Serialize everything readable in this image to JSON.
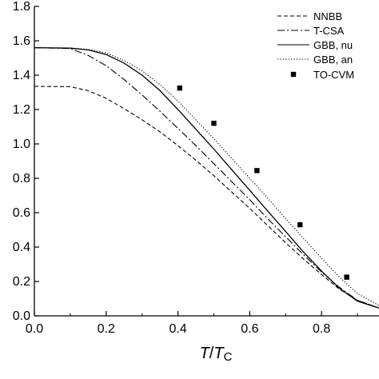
{
  "chart_data": {
    "type": "line",
    "title": "",
    "xlabel": {
      "main": "T",
      "slash": "/",
      "sub_main": "T",
      "sub": "C"
    },
    "ylabel": "",
    "xlim": [
      0,
      0.96
    ],
    "ylim": [
      0,
      1.8
    ],
    "xticks": [
      0.0,
      0.2,
      0.4,
      0.6,
      0.8
    ],
    "xtick_labels": [
      "0.0",
      "0.2",
      "0.4",
      "0.6",
      "0.8"
    ],
    "yticks": [
      0.0,
      0.2,
      0.4,
      0.6,
      0.8,
      1.0,
      1.2,
      1.4,
      1.6,
      1.8
    ],
    "ytick_labels": [
      "0.0",
      "0.2",
      "0.4",
      "0.6",
      "0.8",
      "1.0",
      "1.2",
      "1.4",
      "1.6",
      "1.8"
    ],
    "legend_position": "top-right",
    "series": [
      {
        "name": "NNBB",
        "style": "dashed",
        "x": [
          0.0,
          0.1,
          0.15,
          0.2,
          0.25,
          0.3,
          0.35,
          0.4,
          0.45,
          0.5,
          0.55,
          0.6,
          0.65,
          0.7,
          0.75,
          0.8,
          0.85,
          0.9,
          0.96
        ],
        "y": [
          1.335,
          1.333,
          1.31,
          1.265,
          1.205,
          1.14,
          1.07,
          0.99,
          0.905,
          0.815,
          0.72,
          0.625,
          0.525,
          0.425,
          0.33,
          0.24,
          0.155,
          0.09,
          0.045
        ]
      },
      {
        "name": "T-CSA",
        "style": "dashdot",
        "x": [
          0.0,
          0.1,
          0.15,
          0.2,
          0.25,
          0.3,
          0.35,
          0.4,
          0.45,
          0.5,
          0.55,
          0.6,
          0.65,
          0.7,
          0.75,
          0.8,
          0.85,
          0.9,
          0.96
        ],
        "y": [
          1.56,
          1.555,
          1.515,
          1.455,
          1.375,
          1.285,
          1.19,
          1.09,
          0.99,
          0.885,
          0.78,
          0.675,
          0.565,
          0.46,
          0.355,
          0.255,
          0.165,
          0.09,
          0.045
        ]
      },
      {
        "name": "GBB, nu",
        "style": "solid",
        "x": [
          0.0,
          0.1,
          0.15,
          0.2,
          0.25,
          0.3,
          0.35,
          0.4,
          0.45,
          0.5,
          0.55,
          0.6,
          0.65,
          0.7,
          0.75,
          0.8,
          0.85,
          0.9,
          0.96
        ],
        "y": [
          1.56,
          1.557,
          1.547,
          1.52,
          1.47,
          1.4,
          1.31,
          1.2,
          1.085,
          0.97,
          0.85,
          0.73,
          0.61,
          0.49,
          0.37,
          0.26,
          0.16,
          0.085,
          0.045
        ]
      },
      {
        "name": "GBB, an",
        "style": "dotted",
        "x": [
          0.0,
          0.1,
          0.15,
          0.2,
          0.25,
          0.3,
          0.35,
          0.4,
          0.45,
          0.5,
          0.55,
          0.6,
          0.65,
          0.7,
          0.75,
          0.8,
          0.85,
          0.9,
          0.96
        ],
        "y": [
          1.56,
          1.557,
          1.55,
          1.53,
          1.485,
          1.425,
          1.345,
          1.25,
          1.14,
          1.03,
          0.915,
          0.8,
          0.685,
          0.565,
          0.45,
          0.335,
          0.225,
          0.13,
          0.06
        ]
      },
      {
        "name": "TO-CVM",
        "style": "markers",
        "x": [
          0.405,
          0.5,
          0.62,
          0.74,
          0.87
        ],
        "y": [
          1.325,
          1.12,
          0.845,
          0.53,
          0.225
        ]
      }
    ]
  }
}
